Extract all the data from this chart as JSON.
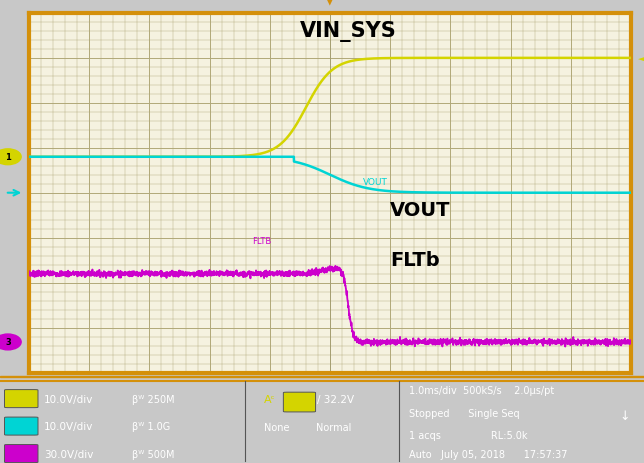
{
  "bg_color": "#c8c8c8",
  "plot_bg_color": "#f5f2e0",
  "grid_color": "#b0a878",
  "border_color": "#d4900a",
  "ch1_color": "#d4d400",
  "ch2_color": "#00d4d4",
  "ch3_color": "#cc00cc",
  "label_vinsys": "VIN_SYS",
  "label_vout": "VOUT",
  "label_vout_small": "VOUT",
  "label_fltb": "FLTb",
  "label_fltb_small": "FLTB",
  "footer_timebase": "1.0ms/div  500kS/s    2.0μs/pt",
  "footer_stopped": "Stopped      Single Seq",
  "footer_acqs": "1 acqs                RL:5.0k",
  "footer_date": "Auto   July 05, 2018      17:57:37"
}
